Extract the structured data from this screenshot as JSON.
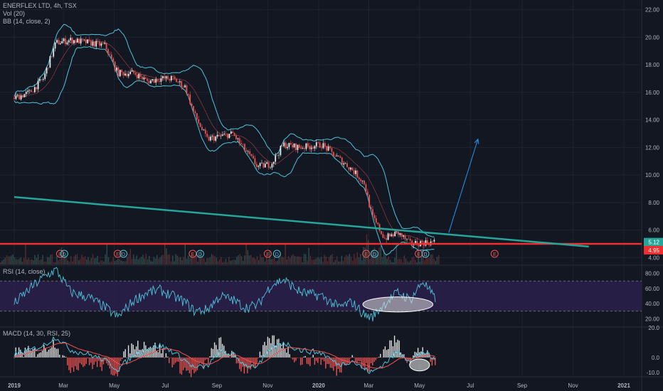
{
  "header": {
    "symbol_line": "ENERFLEX LTD, 4h, TSX",
    "volume_line": "Vol (20)",
    "bb_line": "BB (14, close, 2)"
  },
  "rsi_panel": {
    "label": "RSI (14, close)"
  },
  "macd_panel": {
    "label": "MACD (14, 30, RSI, 25)"
  },
  "colors": {
    "background": "#131722",
    "grid": "#1f2330",
    "bollinger": "#4fc3d9",
    "candle_up": "#e8e8e8",
    "candle_down": "#ef5350",
    "trendline": "#26a69a",
    "support_line": "#f22f2f",
    "arrow": "#2196f3",
    "rsi_band_fill": "#2a1f4a",
    "rsi_line": "#4fc3d9",
    "macd_line": "#4fc3d9",
    "signal_line": "#ef5350",
    "highlight_ellipse": "#e0e0e0"
  },
  "events": {
    "earnings_letter": "E",
    "dividend_letter": "D"
  },
  "chart_data": [
    {
      "type": "candlestick",
      "title": "ENERFLEX LTD, 4h, TSX",
      "x_ticks": [
        "2019",
        "Mar",
        "May",
        "Jul",
        "Sep",
        "Nov",
        "2020",
        "Mar",
        "May",
        "Jul",
        "Sep",
        "Nov",
        "2021"
      ],
      "y_ticks": [
        "22.00",
        "20.00",
        "18.00",
        "16.00",
        "14.00",
        "12.00",
        "10.00",
        "8.00",
        "6.00",
        "4.00"
      ],
      "ylim": [
        3.5,
        22.5
      ],
      "price_path": [
        [
          "2019-01-01",
          15.6
        ],
        [
          "2019-01-20",
          16.0
        ],
        [
          "2019-02-05",
          17.0
        ],
        [
          "2019-02-20",
          19.6
        ],
        [
          "2019-03-10",
          19.8
        ],
        [
          "2019-04-01",
          19.6
        ],
        [
          "2019-04-20",
          19.4
        ],
        [
          "2019-05-05",
          17.4
        ],
        [
          "2019-05-25",
          17.4
        ],
        [
          "2019-06-10",
          16.8
        ],
        [
          "2019-06-25",
          17.0
        ],
        [
          "2019-07-10",
          17.0
        ],
        [
          "2019-07-25",
          16.4
        ],
        [
          "2019-08-05",
          14.4
        ],
        [
          "2019-08-20",
          12.6
        ],
        [
          "2019-09-05",
          12.8
        ],
        [
          "2019-09-20",
          13.0
        ],
        [
          "2019-10-05",
          11.8
        ],
        [
          "2019-10-20",
          10.6
        ],
        [
          "2019-11-05",
          10.8
        ],
        [
          "2019-11-20",
          12.2
        ],
        [
          "2019-12-10",
          12.0
        ],
        [
          "2020-01-05",
          12.2
        ],
        [
          "2020-01-25",
          11.2
        ],
        [
          "2020-02-10",
          10.4
        ],
        [
          "2020-02-25",
          9.4
        ],
        [
          "2020-03-05",
          7.0
        ],
        [
          "2020-03-20",
          5.4
        ],
        [
          "2020-04-05",
          5.8
        ],
        [
          "2020-04-20",
          5.0
        ],
        [
          "2020-05-05",
          5.1
        ],
        [
          "2020-05-20",
          5.12
        ]
      ],
      "last_price": "5.12",
      "support_price": "4.95",
      "trendline": {
        "start": [
          "2019-01-01",
          8.4
        ],
        "end": [
          "2020-11-20",
          4.8
        ]
      },
      "projection_arrow": {
        "start": [
          "2020-06-05",
          5.8
        ],
        "end": [
          "2020-07-10",
          12.6
        ]
      },
      "earnings_markers": [
        "2019-02-25",
        "2019-05-05",
        "2019-08-03",
        "2019-11-01",
        "2020-02-27",
        "2020-04-30",
        "2020-07-30"
      ],
      "dividend_markers": [
        "2019-03-02",
        "2019-05-12",
        "2019-08-12",
        "2019-11-12",
        "2020-03-08",
        "2020-05-08"
      ]
    },
    {
      "type": "line",
      "title": "RSI (14, close)",
      "y_ticks": [
        "80.00",
        "60.00",
        "40.00",
        "20.00"
      ],
      "ylim": [
        10,
        90
      ],
      "band": [
        30,
        70
      ],
      "rsi_path": [
        [
          "2019-01-01",
          40
        ],
        [
          "2019-01-20",
          60
        ],
        [
          "2019-02-05",
          75
        ],
        [
          "2019-02-20",
          85
        ],
        [
          "2019-03-10",
          55
        ],
        [
          "2019-04-01",
          48
        ],
        [
          "2019-04-20",
          35
        ],
        [
          "2019-05-05",
          22
        ],
        [
          "2019-05-25",
          45
        ],
        [
          "2019-06-10",
          55
        ],
        [
          "2019-06-25",
          58
        ],
        [
          "2019-07-10",
          50
        ],
        [
          "2019-07-25",
          42
        ],
        [
          "2019-08-05",
          30
        ],
        [
          "2019-08-20",
          32
        ],
        [
          "2019-09-05",
          50
        ],
        [
          "2019-09-20",
          45
        ],
        [
          "2019-10-05",
          35
        ],
        [
          "2019-10-20",
          38
        ],
        [
          "2019-11-05",
          65
        ],
        [
          "2019-11-20",
          72
        ],
        [
          "2019-12-10",
          55
        ],
        [
          "2020-01-05",
          50
        ],
        [
          "2020-01-25",
          35
        ],
        [
          "2020-02-10",
          42
        ],
        [
          "2020-02-25",
          25
        ],
        [
          "2020-03-05",
          22
        ],
        [
          "2020-03-20",
          40
        ],
        [
          "2020-04-05",
          55
        ],
        [
          "2020-04-20",
          45
        ],
        [
          "2020-05-05",
          70
        ],
        [
          "2020-05-20",
          45
        ]
      ],
      "highlight_ellipse": {
        "center": [
          "2020-04-05",
          39
        ],
        "x_span_days": 42,
        "y_half_height": 10
      }
    },
    {
      "type": "bar",
      "title": "MACD (14, 30, RSI, 25)",
      "y_ticks": [
        "20.0",
        "0.0",
        "-10.0"
      ],
      "ylim": [
        -12,
        20
      ],
      "macd_path": [
        [
          "2019-01-01",
          2
        ],
        [
          "2019-01-20",
          5
        ],
        [
          "2019-02-05",
          8
        ],
        [
          "2019-02-20",
          14
        ],
        [
          "2019-03-10",
          5
        ],
        [
          "2019-04-01",
          2
        ],
        [
          "2019-04-20",
          -2
        ],
        [
          "2019-05-05",
          -8
        ],
        [
          "2019-05-25",
          2
        ],
        [
          "2019-06-10",
          6
        ],
        [
          "2019-06-25",
          8
        ],
        [
          "2019-07-10",
          4
        ],
        [
          "2019-07-25",
          -2
        ],
        [
          "2019-08-05",
          -7
        ],
        [
          "2019-08-20",
          -6
        ],
        [
          "2019-09-05",
          4
        ],
        [
          "2019-09-20",
          2
        ],
        [
          "2019-10-05",
          -5
        ],
        [
          "2019-10-20",
          -6
        ],
        [
          "2019-11-05",
          6
        ],
        [
          "2019-11-20",
          10
        ],
        [
          "2019-12-10",
          5
        ],
        [
          "2020-01-05",
          3
        ],
        [
          "2020-01-25",
          -5
        ],
        [
          "2020-02-10",
          -2
        ],
        [
          "2020-02-25",
          -8
        ],
        [
          "2020-03-05",
          -10
        ],
        [
          "2020-03-20",
          -4
        ],
        [
          "2020-04-05",
          4
        ],
        [
          "2020-04-20",
          -2
        ],
        [
          "2020-05-05",
          4
        ],
        [
          "2020-05-20",
          -2
        ]
      ],
      "highlight_ellipse": {
        "center": [
          "2020-05-01",
          -5
        ],
        "x_span_days": 12,
        "y_half_height": 4
      }
    }
  ]
}
